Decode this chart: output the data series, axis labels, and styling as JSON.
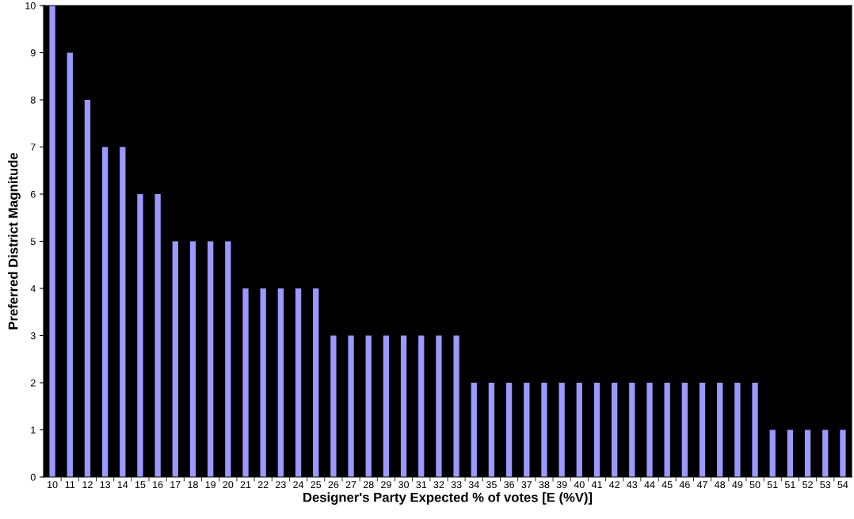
{
  "chart_data": {
    "type": "bar",
    "xlabel": "Designer's Party Expected % of votes [E (%V)]",
    "ylabel": "Preferred District Magnitude",
    "categories": [
      "10",
      "11",
      "12",
      "13",
      "14",
      "15",
      "16",
      "17",
      "18",
      "19",
      "20",
      "21",
      "22",
      "23",
      "24",
      "25",
      "26",
      "27",
      "28",
      "29",
      "30",
      "31",
      "32",
      "33",
      "34",
      "35",
      "36",
      "37",
      "38",
      "39",
      "40",
      "41",
      "42",
      "43",
      "44",
      "45",
      "46",
      "47",
      "48",
      "49",
      "50",
      "51",
      "51",
      "52",
      "53",
      "54"
    ],
    "values": [
      10,
      9,
      8,
      7,
      7,
      6,
      6,
      5,
      5,
      5,
      5,
      4,
      4,
      4,
      4,
      4,
      3,
      3,
      3,
      3,
      3,
      3,
      3,
      3,
      2,
      2,
      2,
      2,
      2,
      2,
      2,
      2,
      2,
      2,
      2,
      2,
      2,
      2,
      2,
      2,
      2,
      1,
      1,
      1,
      1,
      1
    ],
    "color": "#9999ff",
    "ylim": [
      0,
      10
    ],
    "yticks": [
      0,
      1,
      2,
      3,
      4,
      5,
      6,
      7,
      8,
      9,
      10
    ],
    "grid": false,
    "legend": false
  }
}
